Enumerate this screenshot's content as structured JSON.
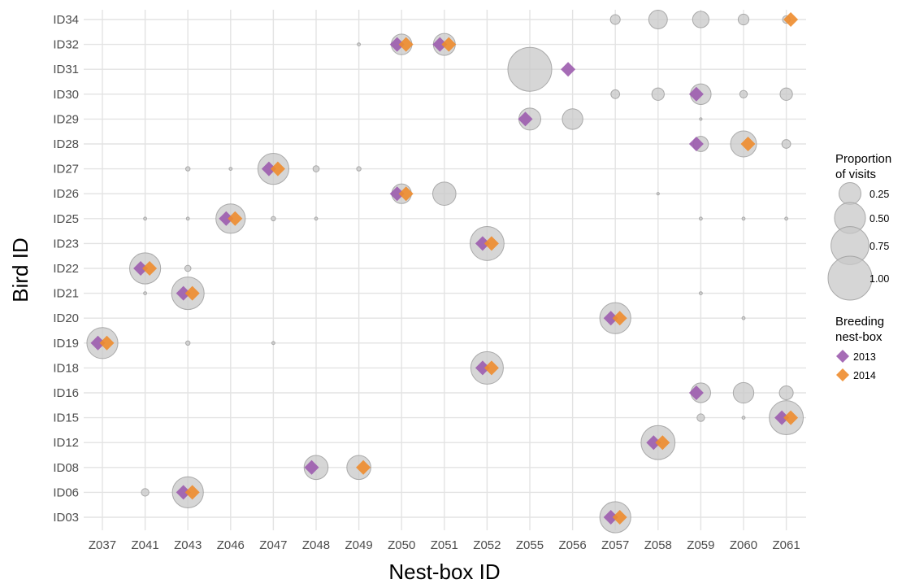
{
  "chart_data": {
    "type": "scatter",
    "xlabel": "Nest-box ID",
    "ylabel": "Bird ID",
    "grid": true,
    "categories_x": [
      "Z037",
      "Z041",
      "Z043",
      "Z046",
      "Z047",
      "Z048",
      "Z049",
      "Z050",
      "Z051",
      "Z052",
      "Z055",
      "Z056",
      "Z057",
      "Z058",
      "Z059",
      "Z060",
      "Z061"
    ],
    "categories_y": [
      "ID03",
      "ID06",
      "ID08",
      "ID12",
      "ID15",
      "ID16",
      "ID18",
      "ID19",
      "ID20",
      "ID21",
      "ID22",
      "ID23",
      "ID25",
      "ID26",
      "ID27",
      "ID28",
      "ID29",
      "ID30",
      "ID31",
      "ID32",
      "ID34"
    ],
    "visits": [
      {
        "bird": "ID34",
        "box": "Z057",
        "p": 0.05
      },
      {
        "bird": "ID34",
        "box": "Z058",
        "p": 0.18
      },
      {
        "bird": "ID34",
        "box": "Z059",
        "p": 0.14
      },
      {
        "bird": "ID34",
        "box": "Z060",
        "p": 0.06
      },
      {
        "bird": "ID34",
        "box": "Z061",
        "p": 0.03
      },
      {
        "bird": "ID32",
        "box": "Z049",
        "p": 0.005
      },
      {
        "bird": "ID32",
        "box": "Z050",
        "p": 0.22
      },
      {
        "bird": "ID32",
        "box": "Z051",
        "p": 0.25
      },
      {
        "bird": "ID31",
        "box": "Z055",
        "p": 1.0
      },
      {
        "bird": "ID30",
        "box": "Z057",
        "p": 0.04
      },
      {
        "bird": "ID30",
        "box": "Z058",
        "p": 0.08
      },
      {
        "bird": "ID30",
        "box": "Z059",
        "p": 0.22
      },
      {
        "bird": "ID30",
        "box": "Z060",
        "p": 0.03
      },
      {
        "bird": "ID30",
        "box": "Z061",
        "p": 0.08
      },
      {
        "bird": "ID29",
        "box": "Z055",
        "p": 0.25
      },
      {
        "bird": "ID29",
        "box": "Z056",
        "p": 0.22
      },
      {
        "bird": "ID29",
        "box": "Z059",
        "p": 0.003
      },
      {
        "bird": "ID28",
        "box": "Z059",
        "p": 0.12
      },
      {
        "bird": "ID28",
        "box": "Z060",
        "p": 0.35
      },
      {
        "bird": "ID28",
        "box": "Z061",
        "p": 0.04
      },
      {
        "bird": "ID27",
        "box": "Z043",
        "p": 0.01
      },
      {
        "bird": "ID27",
        "box": "Z046",
        "p": 0.005
      },
      {
        "bird": "ID27",
        "box": "Z047",
        "p": 0.5
      },
      {
        "bird": "ID27",
        "box": "Z048",
        "p": 0.02
      },
      {
        "bird": "ID27",
        "box": "Z049",
        "p": 0.01
      },
      {
        "bird": "ID26",
        "box": "Z050",
        "p": 0.2
      },
      {
        "bird": "ID26",
        "box": "Z051",
        "p": 0.28
      },
      {
        "bird": "ID26",
        "box": "Z058",
        "p": 0.002
      },
      {
        "bird": "ID25",
        "box": "Z041",
        "p": 0.005
      },
      {
        "bird": "ID25",
        "box": "Z043",
        "p": 0.005
      },
      {
        "bird": "ID25",
        "box": "Z046",
        "p": 0.45
      },
      {
        "bird": "ID25",
        "box": "Z047",
        "p": 0.01
      },
      {
        "bird": "ID25",
        "box": "Z048",
        "p": 0.005
      },
      {
        "bird": "ID25",
        "box": "Z059",
        "p": 0.005
      },
      {
        "bird": "ID25",
        "box": "Z060",
        "p": 0.005
      },
      {
        "bird": "ID25",
        "box": "Z061",
        "p": 0.005
      },
      {
        "bird": "ID23",
        "box": "Z052",
        "p": 0.6
      },
      {
        "bird": "ID22",
        "box": "Z041",
        "p": 0.5
      },
      {
        "bird": "ID22",
        "box": "Z043",
        "p": 0.02
      },
      {
        "bird": "ID21",
        "box": "Z041",
        "p": 0.005
      },
      {
        "bird": "ID21",
        "box": "Z043",
        "p": 0.55
      },
      {
        "bird": "ID21",
        "box": "Z059",
        "p": 0.005
      },
      {
        "bird": "ID20",
        "box": "Z057",
        "p": 0.5
      },
      {
        "bird": "ID20",
        "box": "Z060",
        "p": 0.005
      },
      {
        "bird": "ID19",
        "box": "Z037",
        "p": 0.5
      },
      {
        "bird": "ID19",
        "box": "Z043",
        "p": 0.01
      },
      {
        "bird": "ID19",
        "box": "Z047",
        "p": 0.005
      },
      {
        "bird": "ID18",
        "box": "Z052",
        "p": 0.55
      },
      {
        "bird": "ID16",
        "box": "Z059",
        "p": 0.2
      },
      {
        "bird": "ID16",
        "box": "Z060",
        "p": 0.22
      },
      {
        "bird": "ID16",
        "box": "Z061",
        "p": 0.1
      },
      {
        "bird": "ID15",
        "box": "Z059",
        "p": 0.03
      },
      {
        "bird": "ID15",
        "box": "Z060",
        "p": 0.005
      },
      {
        "bird": "ID15",
        "box": "Z061",
        "p": 0.6
      },
      {
        "bird": "ID12",
        "box": "Z058",
        "p": 0.6
      },
      {
        "bird": "ID08",
        "box": "Z048",
        "p": 0.3
      },
      {
        "bird": "ID08",
        "box": "Z049",
        "p": 0.3
      },
      {
        "bird": "ID06",
        "box": "Z041",
        "p": 0.03
      },
      {
        "bird": "ID06",
        "box": "Z043",
        "p": 0.5
      },
      {
        "bird": "ID03",
        "box": "Z057",
        "p": 0.5
      }
    ],
    "breeding": [
      {
        "bird": "ID34",
        "box": "Z061",
        "year": "2014"
      },
      {
        "bird": "ID32",
        "box": "Z050",
        "year": "2013"
      },
      {
        "bird": "ID32",
        "box": "Z050",
        "year": "2014"
      },
      {
        "bird": "ID32",
        "box": "Z051",
        "year": "2013"
      },
      {
        "bird": "ID32",
        "box": "Z051",
        "year": "2014"
      },
      {
        "bird": "ID31",
        "box": "Z056",
        "year": "2013"
      },
      {
        "bird": "ID30",
        "box": "Z059",
        "year": "2013"
      },
      {
        "bird": "ID29",
        "box": "Z055",
        "year": "2013"
      },
      {
        "bird": "ID28",
        "box": "Z059",
        "year": "2013"
      },
      {
        "bird": "ID28",
        "box": "Z060",
        "year": "2014"
      },
      {
        "bird": "ID27",
        "box": "Z047",
        "year": "2013"
      },
      {
        "bird": "ID27",
        "box": "Z047",
        "year": "2014"
      },
      {
        "bird": "ID26",
        "box": "Z050",
        "year": "2013"
      },
      {
        "bird": "ID26",
        "box": "Z050",
        "year": "2014"
      },
      {
        "bird": "ID25",
        "box": "Z046",
        "year": "2013"
      },
      {
        "bird": "ID25",
        "box": "Z046",
        "year": "2014"
      },
      {
        "bird": "ID23",
        "box": "Z052",
        "year": "2013"
      },
      {
        "bird": "ID23",
        "box": "Z052",
        "year": "2014"
      },
      {
        "bird": "ID22",
        "box": "Z041",
        "year": "2013"
      },
      {
        "bird": "ID22",
        "box": "Z041",
        "year": "2014"
      },
      {
        "bird": "ID21",
        "box": "Z043",
        "year": "2013"
      },
      {
        "bird": "ID21",
        "box": "Z043",
        "year": "2014"
      },
      {
        "bird": "ID20",
        "box": "Z057",
        "year": "2013"
      },
      {
        "bird": "ID20",
        "box": "Z057",
        "year": "2014"
      },
      {
        "bird": "ID19",
        "box": "Z037",
        "year": "2013"
      },
      {
        "bird": "ID19",
        "box": "Z037",
        "year": "2014"
      },
      {
        "bird": "ID18",
        "box": "Z052",
        "year": "2013"
      },
      {
        "bird": "ID18",
        "box": "Z052",
        "year": "2014"
      },
      {
        "bird": "ID16",
        "box": "Z059",
        "year": "2013"
      },
      {
        "bird": "ID15",
        "box": "Z061",
        "year": "2013"
      },
      {
        "bird": "ID15",
        "box": "Z061",
        "year": "2014"
      },
      {
        "bird": "ID12",
        "box": "Z058",
        "year": "2013"
      },
      {
        "bird": "ID12",
        "box": "Z058",
        "year": "2014"
      },
      {
        "bird": "ID08",
        "box": "Z048",
        "year": "2013"
      },
      {
        "bird": "ID08",
        "box": "Z049",
        "year": "2014"
      },
      {
        "bird": "ID06",
        "box": "Z043",
        "year": "2013"
      },
      {
        "bird": "ID06",
        "box": "Z043",
        "year": "2014"
      },
      {
        "bird": "ID03",
        "box": "Z057",
        "year": "2013"
      },
      {
        "bird": "ID03",
        "box": "Z057",
        "year": "2014"
      }
    ],
    "legend": {
      "position": "right",
      "size_title_line1": "Proportion",
      "size_title_line2": "of visits",
      "size_labels": [
        "0.25",
        "0.50",
        "0.75",
        "1.00"
      ],
      "size_values": [
        0.25,
        0.5,
        0.75,
        1.0
      ],
      "color_title_line1": "Breeding",
      "color_title_line2": "nest-box",
      "color_labels": [
        "2013",
        "2014"
      ]
    },
    "colors": {
      "2013": "#9c5cae",
      "2014": "#ee8c2e",
      "bubble_fill": "#c8c8c8",
      "bubble_stroke": "#9a9a9a",
      "grid": "#e3e3e3"
    }
  }
}
